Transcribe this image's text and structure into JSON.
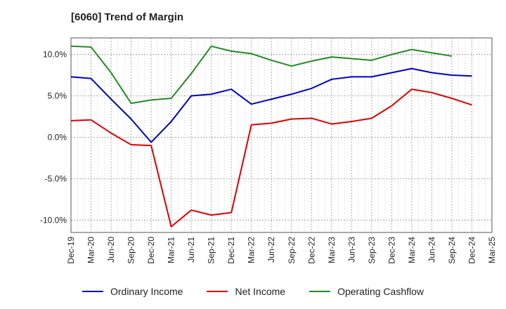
{
  "chart_data": {
    "type": "line",
    "title": "[6060]  Trend of Margin",
    "xlabel": "",
    "ylabel": "",
    "categories": [
      "Dec-19",
      "Mar-20",
      "Jun-20",
      "Sep-20",
      "Dec-20",
      "Mar-21",
      "Jun-21",
      "Sep-21",
      "Dec-21",
      "Mar-22",
      "Jun-22",
      "Sep-22",
      "Dec-22",
      "Mar-23",
      "Jun-23",
      "Sep-23",
      "Dec-23",
      "Mar-24",
      "Jun-24",
      "Sep-24",
      "Dec-24",
      "Mar-25"
    ],
    "yticks": [
      -10.0,
      -5.0,
      0.0,
      5.0,
      10.0
    ],
    "ytick_labels": [
      "-10.0%",
      "-5.0%",
      "0.0%",
      "5.0%",
      "10.0%"
    ],
    "ylim": [
      -11.5,
      12.0
    ],
    "grid": true,
    "legend_position": "bottom",
    "series": [
      {
        "name": "Ordinary Income",
        "color": "#0000cc",
        "values": [
          7.3,
          7.1,
          4.6,
          2.2,
          -0.6,
          1.9,
          5.0,
          5.2,
          5.8,
          4.0,
          4.6,
          5.2,
          5.9,
          7.0,
          7.3,
          7.3,
          7.8,
          8.3,
          7.8,
          7.5,
          7.4,
          null
        ]
      },
      {
        "name": "Net Income",
        "color": "#dd0000",
        "values": [
          2.0,
          2.1,
          0.5,
          -0.9,
          -1.0,
          -10.8,
          -8.8,
          -9.4,
          -9.1,
          1.5,
          1.7,
          2.2,
          2.3,
          1.6,
          1.9,
          2.3,
          3.8,
          5.8,
          5.4,
          4.7,
          3.9,
          null
        ]
      },
      {
        "name": "Operating Cashflow",
        "color": "#228b22",
        "values": [
          11.0,
          10.9,
          7.8,
          4.1,
          4.5,
          4.7,
          7.7,
          11.0,
          10.4,
          10.1,
          9.3,
          8.6,
          9.2,
          9.7,
          9.5,
          9.3,
          10.0,
          10.6,
          10.2,
          9.8,
          null,
          null
        ]
      }
    ]
  }
}
